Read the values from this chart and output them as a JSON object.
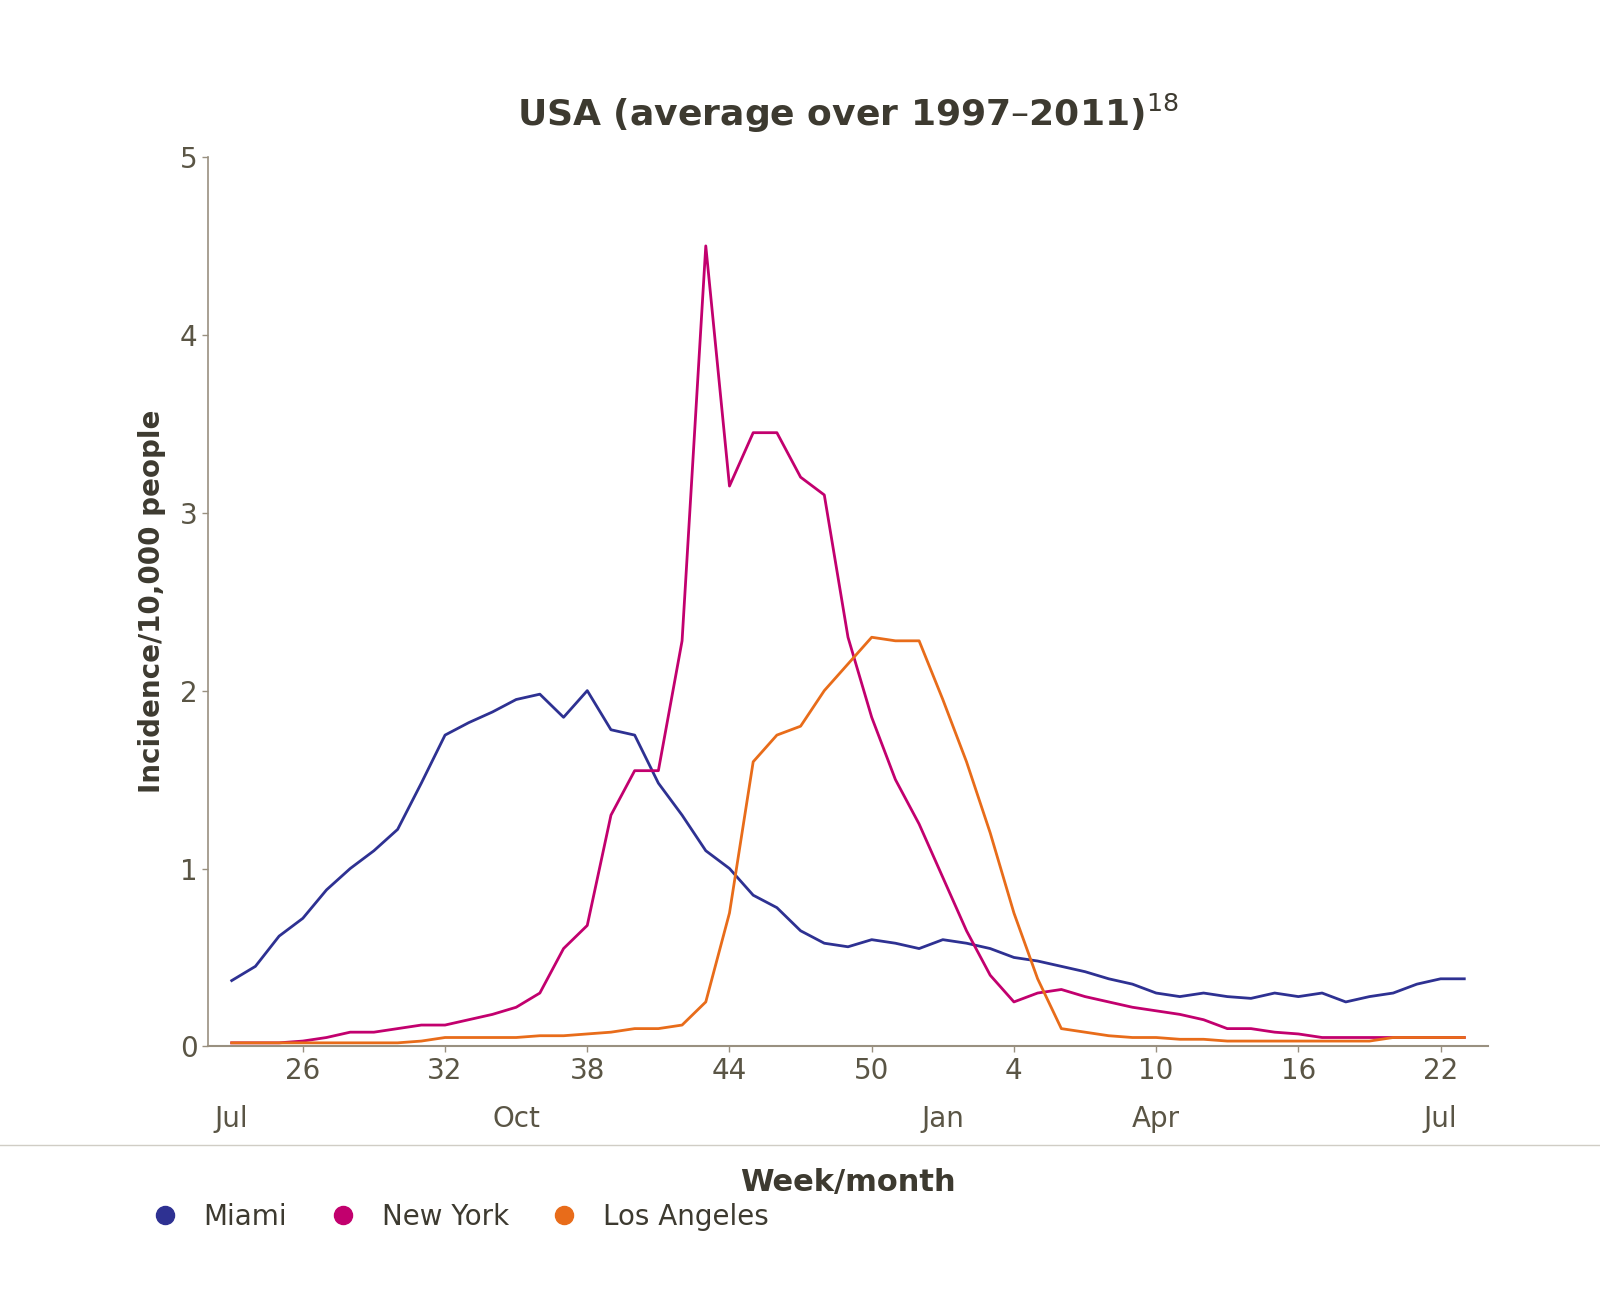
{
  "title_plain": "USA (average over 1997–2011)",
  "title_superscript": "18",
  "ylabel": "Incidence/10,000 people",
  "xlabel": "Week/month",
  "ylim": [
    0,
    5
  ],
  "yticks": [
    0,
    1,
    2,
    3,
    4,
    5
  ],
  "xtick_week_labels": [
    "26",
    "32",
    "38",
    "44",
    "50",
    "4",
    "10",
    "16",
    "22"
  ],
  "xtick_week_positions": [
    26,
    32,
    38,
    44,
    50,
    56,
    62,
    68,
    74
  ],
  "month_labels": [
    "Jul",
    "Oct",
    "Jan",
    "Apr",
    "Jul"
  ],
  "month_week_positions": [
    23,
    35,
    53,
    62,
    74
  ],
  "xlim_min": 22,
  "xlim_max": 76,
  "background_color": "#ffffff",
  "plot_bg_color": "#ffffff",
  "title_color": "#3d3a30",
  "axis_color": "#999080",
  "tick_color": "#5a5545",
  "label_color": "#3d3a30",
  "miami_color": "#2e3192",
  "ny_color": "#c2006e",
  "la_color": "#e86c1a",
  "miami_label": "Miami",
  "ny_label": "New York",
  "la_label": "Los Angeles",
  "miami_x": [
    23,
    24,
    25,
    26,
    27,
    28,
    29,
    30,
    31,
    32,
    33,
    34,
    35,
    36,
    37,
    38,
    39,
    40,
    41,
    42,
    43,
    44,
    45,
    46,
    47,
    48,
    49,
    50,
    51,
    52,
    53,
    54,
    55,
    56,
    57,
    58,
    59,
    60,
    61,
    62,
    63,
    64,
    65,
    66,
    67,
    68,
    69,
    70,
    71,
    72,
    73,
    74,
    75
  ],
  "miami_y": [
    0.37,
    0.45,
    0.62,
    0.72,
    0.88,
    1.0,
    1.1,
    1.22,
    1.48,
    1.75,
    1.82,
    1.88,
    1.95,
    1.98,
    1.85,
    2.0,
    1.78,
    1.75,
    1.48,
    1.3,
    1.1,
    1.0,
    0.85,
    0.78,
    0.65,
    0.58,
    0.56,
    0.6,
    0.58,
    0.55,
    0.6,
    0.58,
    0.55,
    0.5,
    0.48,
    0.45,
    0.42,
    0.38,
    0.35,
    0.3,
    0.28,
    0.3,
    0.28,
    0.27,
    0.3,
    0.28,
    0.3,
    0.25,
    0.28,
    0.3,
    0.35,
    0.38,
    0.38
  ],
  "ny_x": [
    23,
    24,
    25,
    26,
    27,
    28,
    29,
    30,
    31,
    32,
    33,
    34,
    35,
    36,
    37,
    38,
    39,
    40,
    41,
    42,
    43,
    44,
    45,
    46,
    47,
    48,
    49,
    50,
    51,
    52,
    53,
    54,
    55,
    56,
    57,
    58,
    59,
    60,
    61,
    62,
    63,
    64,
    65,
    66,
    67,
    68,
    69,
    70,
    71,
    72,
    73,
    74,
    75
  ],
  "ny_y": [
    0.02,
    0.02,
    0.02,
    0.03,
    0.05,
    0.08,
    0.08,
    0.1,
    0.12,
    0.12,
    0.15,
    0.18,
    0.22,
    0.3,
    0.55,
    0.68,
    1.3,
    1.55,
    1.55,
    2.28,
    4.5,
    3.15,
    3.45,
    3.45,
    3.2,
    3.1,
    2.3,
    1.85,
    1.5,
    1.25,
    0.95,
    0.65,
    0.4,
    0.25,
    0.3,
    0.32,
    0.28,
    0.25,
    0.22,
    0.2,
    0.18,
    0.15,
    0.1,
    0.1,
    0.08,
    0.07,
    0.05,
    0.05,
    0.05,
    0.05,
    0.05,
    0.05,
    0.05
  ],
  "la_x": [
    23,
    24,
    25,
    26,
    27,
    28,
    29,
    30,
    31,
    32,
    33,
    34,
    35,
    36,
    37,
    38,
    39,
    40,
    41,
    42,
    43,
    44,
    45,
    46,
    47,
    48,
    49,
    50,
    51,
    52,
    53,
    54,
    55,
    56,
    57,
    58,
    59,
    60,
    61,
    62,
    63,
    64,
    65,
    66,
    67,
    68,
    69,
    70,
    71,
    72,
    73,
    74,
    75
  ],
  "la_y": [
    0.02,
    0.02,
    0.02,
    0.02,
    0.02,
    0.02,
    0.02,
    0.02,
    0.03,
    0.05,
    0.05,
    0.05,
    0.05,
    0.06,
    0.06,
    0.07,
    0.08,
    0.1,
    0.1,
    0.12,
    0.25,
    0.75,
    1.6,
    1.75,
    1.8,
    2.0,
    2.15,
    2.3,
    2.28,
    2.28,
    1.95,
    1.6,
    1.2,
    0.75,
    0.38,
    0.1,
    0.08,
    0.06,
    0.05,
    0.05,
    0.04,
    0.04,
    0.03,
    0.03,
    0.03,
    0.03,
    0.03,
    0.03,
    0.03,
    0.05,
    0.05,
    0.05,
    0.05
  ]
}
